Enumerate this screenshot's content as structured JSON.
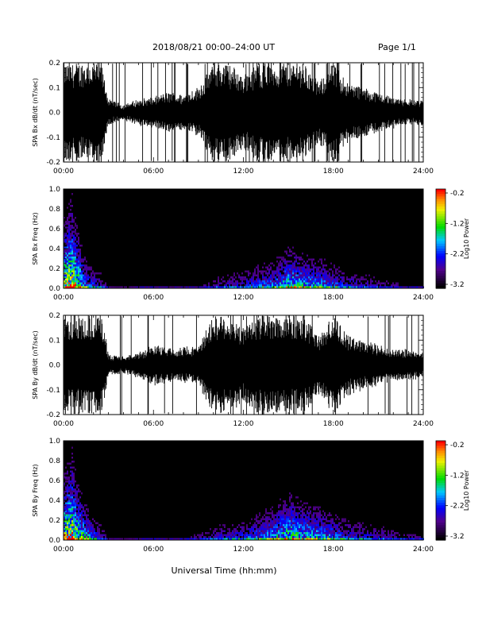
{
  "header": {
    "title": "2018/08/21  00:00–24:00 UT",
    "page": "Page 1/1"
  },
  "xlabel": "Universal Time (hh:mm)",
  "chart_data": [
    {
      "type": "line",
      "ylabel": "SPA Bx dB/dt (nT/sec)",
      "xlim": [
        0,
        24
      ],
      "ylim": [
        -0.2,
        0.2
      ],
      "x_ticks": [
        "00:00",
        "06:00",
        "12:00",
        "18:00",
        "24:00"
      ],
      "y_ticks": [
        "0.2",
        "0.1",
        "0.0",
        "-0.1",
        "-0.2"
      ],
      "envelope": {
        "hours": [
          0,
          0.5,
          1,
          1.5,
          2,
          2.5,
          2.8,
          3,
          4,
          5,
          6,
          7,
          8,
          9,
          10,
          10.5,
          11,
          12,
          13,
          14,
          15,
          16,
          17,
          18,
          19,
          20,
          21,
          22,
          23,
          24
        ],
        "amplitude": [
          0.2,
          0.2,
          0.2,
          0.2,
          0.2,
          0.2,
          0.12,
          0.05,
          0.03,
          0.05,
          0.06,
          0.08,
          0.07,
          0.1,
          0.2,
          0.2,
          0.2,
          0.15,
          0.2,
          0.2,
          0.2,
          0.2,
          0.12,
          0.2,
          0.12,
          0.1,
          0.08,
          0.06,
          0.05,
          0.05
        ]
      }
    },
    {
      "type": "heatmap",
      "ylabel": "SPA Bx Freq (Hz)",
      "xlim": [
        0,
        24
      ],
      "ylim": [
        0,
        1.0
      ],
      "x_ticks": [
        "00:00",
        "06:00",
        "12:00",
        "18:00",
        "24:00"
      ],
      "y_ticks": [
        "1.0",
        "0.8",
        "0.6",
        "0.4",
        "0.2",
        "0.0"
      ],
      "colorbar": {
        "label": "Log10 Power",
        "ticks": [
          "-0.2",
          "-1.2",
          "-2.2",
          "-3.2"
        ],
        "range": [
          -3.2,
          -0.2
        ]
      },
      "activity": {
        "hours": [
          0,
          0.5,
          1,
          1.5,
          2,
          2.5,
          3,
          4,
          5,
          6,
          7,
          8,
          9,
          10,
          11,
          12,
          13,
          14,
          15,
          16,
          17,
          18,
          19,
          20,
          21,
          22,
          23,
          24
        ],
        "level": [
          0.9,
          1.0,
          0.8,
          0.5,
          0.4,
          0.3,
          0.1,
          0.05,
          0.1,
          0.15,
          0.1,
          0.1,
          0.15,
          0.25,
          0.3,
          0.35,
          0.45,
          0.5,
          0.7,
          0.6,
          0.55,
          0.45,
          0.35,
          0.3,
          0.25,
          0.2,
          0.15,
          0.15
        ]
      }
    },
    {
      "type": "line",
      "ylabel": "SPA By dB/dt (nT/sec)",
      "xlim": [
        0,
        24
      ],
      "ylim": [
        -0.2,
        0.2
      ],
      "x_ticks": [
        "00:00",
        "06:00",
        "12:00",
        "18:00",
        "24:00"
      ],
      "y_ticks": [
        "0.2",
        "0.1",
        "0.0",
        "-0.1",
        "-0.2"
      ],
      "envelope": {
        "hours": [
          0,
          0.5,
          1,
          1.5,
          2,
          2.5,
          2.8,
          3,
          4,
          5,
          6,
          7,
          8,
          9,
          10,
          10.5,
          11,
          12,
          13,
          14,
          15,
          16,
          17,
          18,
          19,
          20,
          21,
          22,
          23,
          24
        ],
        "amplitude": [
          0.2,
          0.2,
          0.2,
          0.2,
          0.2,
          0.2,
          0.12,
          0.04,
          0.03,
          0.05,
          0.08,
          0.07,
          0.07,
          0.08,
          0.2,
          0.2,
          0.2,
          0.15,
          0.2,
          0.2,
          0.2,
          0.2,
          0.12,
          0.2,
          0.12,
          0.1,
          0.08,
          0.06,
          0.06,
          0.05
        ]
      }
    },
    {
      "type": "heatmap",
      "ylabel": "SPA By Freq (Hz)",
      "xlim": [
        0,
        24
      ],
      "ylim": [
        0,
        1.0
      ],
      "x_ticks": [
        "00:00",
        "06:00",
        "12:00",
        "18:00",
        "24:00"
      ],
      "y_ticks": [
        "1.0",
        "0.8",
        "0.6",
        "0.4",
        "0.2",
        "0.0"
      ],
      "colorbar": {
        "label": "Log10 Power",
        "ticks": [
          "-0.2",
          "-1.2",
          "-2.2",
          "-3.2"
        ],
        "range": [
          -3.2,
          -0.2
        ]
      },
      "activity": {
        "hours": [
          0,
          0.5,
          1,
          1.5,
          2,
          2.5,
          3,
          4,
          5,
          6,
          7,
          8,
          9,
          10,
          11,
          12,
          13,
          14,
          15,
          16,
          17,
          18,
          19,
          20,
          21,
          22,
          23,
          24
        ],
        "level": [
          0.9,
          1.0,
          0.8,
          0.6,
          0.45,
          0.35,
          0.1,
          0.05,
          0.1,
          0.15,
          0.1,
          0.15,
          0.2,
          0.3,
          0.35,
          0.4,
          0.5,
          0.6,
          0.75,
          0.65,
          0.6,
          0.5,
          0.4,
          0.35,
          0.3,
          0.25,
          0.2,
          0.2
        ]
      }
    }
  ]
}
